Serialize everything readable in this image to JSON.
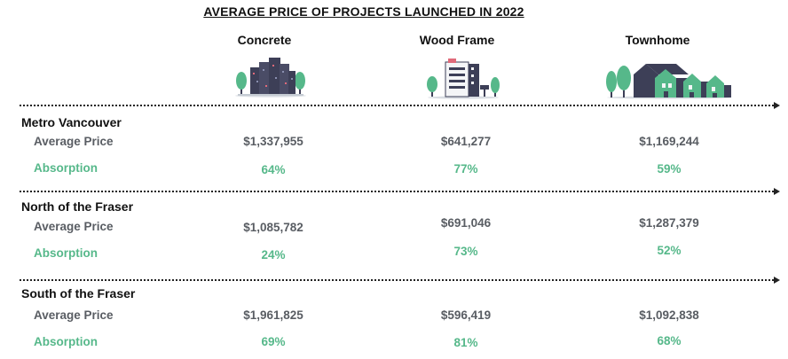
{
  "chart_data": {
    "type": "table",
    "title": "AVERAGE PRICE OF PROJECTS LAUNCHED IN 2022",
    "columns": [
      "Concrete",
      "Wood Frame",
      "Townhome"
    ],
    "metrics": [
      "Average Price",
      "Absorption"
    ],
    "regions": [
      {
        "name": "Metro Vancouver",
        "average_price": [
          "$1,337,955",
          "$641,277",
          "$1,169,244"
        ],
        "absorption": [
          "64%",
          "77%",
          "59%"
        ]
      },
      {
        "name": "North of the Fraser",
        "average_price": [
          "$1,085,782",
          "$691,046",
          "$1,287,379"
        ],
        "absorption": [
          "24%",
          "73%",
          "52%"
        ]
      },
      {
        "name": "South of the Fraser",
        "average_price": [
          "$1,961,825",
          "$596,419",
          "$1,092,838"
        ],
        "absorption": [
          "69%",
          "81%",
          "68%"
        ]
      }
    ]
  },
  "colors": {
    "accent_green": "#56b88a",
    "label_gray": "#595d63",
    "building_dark": "#3d3f57"
  },
  "icons": [
    "concrete-building-icon",
    "wood-frame-building-icon",
    "townhome-icon"
  ]
}
